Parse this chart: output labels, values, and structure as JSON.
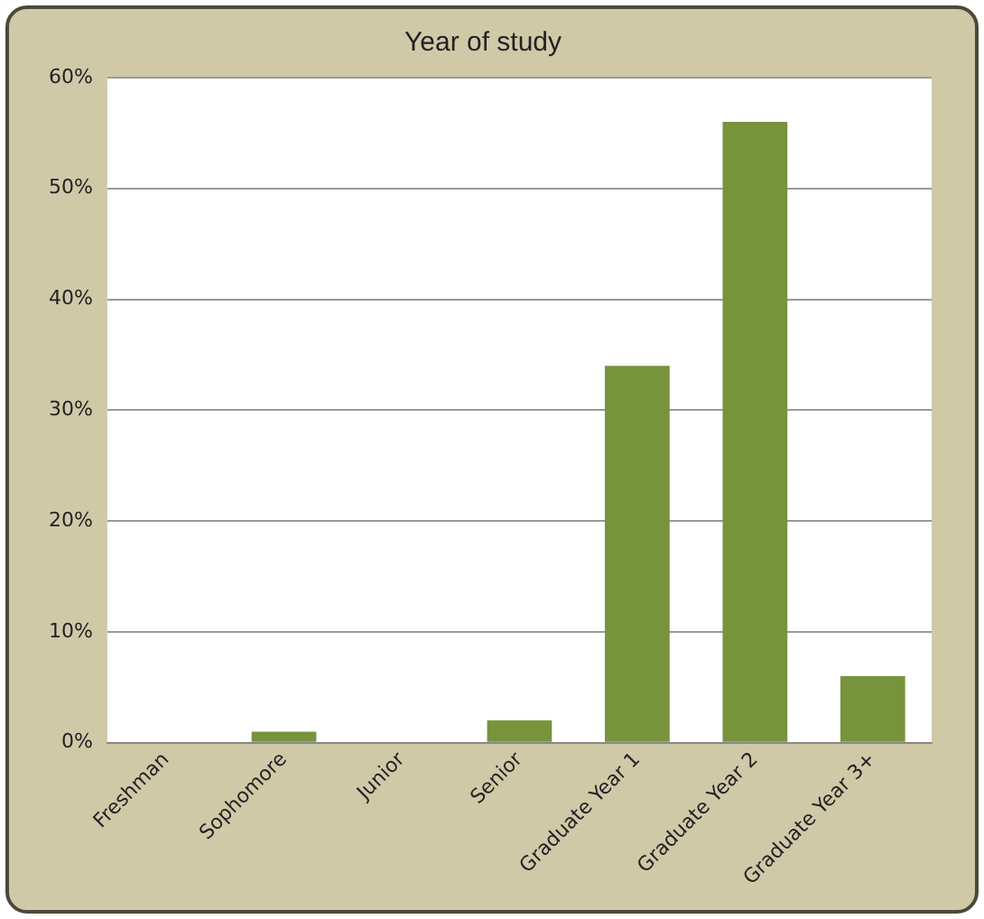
{
  "chart_data": {
    "type": "bar",
    "title": "Year of study",
    "categories": [
      "Freshman",
      "Sophomore",
      "Junior",
      "Senior",
      "Graduate Year 1",
      "Graduate Year 2",
      "Graduate Year 3+"
    ],
    "values": [
      0,
      1,
      0,
      2,
      34,
      56,
      6
    ],
    "color": "#77933c",
    "ylim": [
      0,
      60
    ],
    "yticks": [
      {
        "value": 0,
        "label": "0%"
      },
      {
        "value": 10,
        "label": "10%"
      },
      {
        "value": 20,
        "label": "20%"
      },
      {
        "value": 30,
        "label": "30%"
      },
      {
        "value": 40,
        "label": "40%"
      },
      {
        "value": 50,
        "label": "50%"
      },
      {
        "value": 60,
        "label": "60%"
      }
    ],
    "grid": "y",
    "legend": false
  }
}
